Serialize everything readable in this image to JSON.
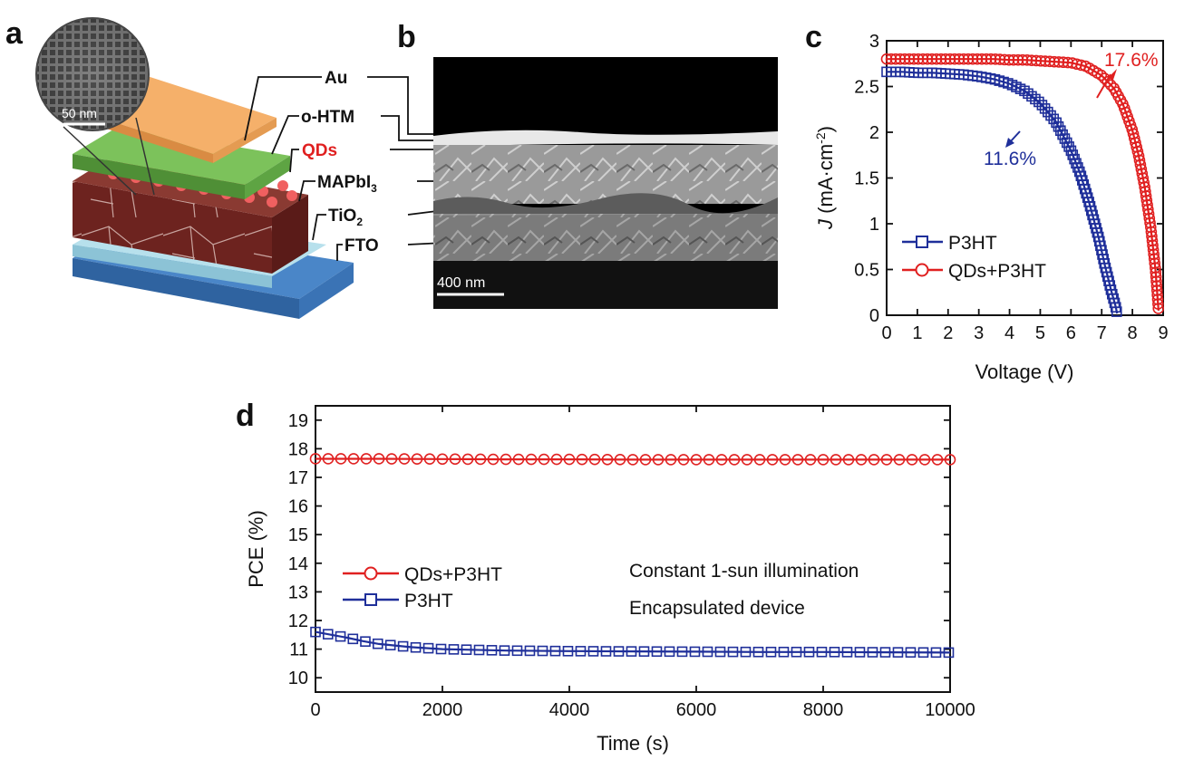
{
  "panels": {
    "a": "a",
    "b": "b",
    "c": "c",
    "d": "d"
  },
  "schematic": {
    "scale_bar": "50 nm",
    "layers": [
      {
        "label": "Au",
        "color": "#f0a45c"
      },
      {
        "label": "o-HTM",
        "color": "#6aa84f"
      },
      {
        "label": "QDs",
        "color": "#e02020",
        "highlight": true
      },
      {
        "label": "MAPbI",
        "sub": "3",
        "color": "#7a2b26"
      },
      {
        "label": "TiO",
        "sub": "2",
        "color": "#9fd2e0"
      },
      {
        "label": "FTO",
        "color": "#4a86c8"
      }
    ]
  },
  "sem": {
    "scale_bar": "400 nm"
  },
  "colors": {
    "red": "#e02020",
    "blue": "#1f2f9a"
  },
  "chart_data": [
    {
      "id": "c",
      "type": "line",
      "xlabel": "Voltage (V)",
      "ylabel_main": "J",
      "ylabel_unit": " (mA·cm",
      "ylabel_exp": "-2",
      "ylabel_close": ")",
      "xlim": [
        0,
        9
      ],
      "ylim": [
        0,
        3
      ],
      "xticks": [
        0,
        1,
        2,
        3,
        4,
        5,
        6,
        7,
        8,
        9
      ],
      "yticks": [
        0,
        0.5,
        1,
        1.5,
        2,
        2.5,
        3
      ],
      "ytick_labels": [
        "0",
        "0.5",
        "1",
        "1.5",
        "2",
        "2.5",
        "3"
      ],
      "legend": "bottom-left",
      "series": [
        {
          "name": "P3HT",
          "marker": "square",
          "color": "#1f2f9a",
          "x": [
            0.0,
            0.5,
            1.0,
            1.5,
            2.0,
            2.5,
            3.0,
            3.5,
            4.0,
            4.5,
            5.0,
            5.5,
            6.0,
            6.3,
            6.6,
            6.9,
            7.1,
            7.3,
            7.45,
            7.5
          ],
          "y": [
            2.66,
            2.66,
            2.65,
            2.65,
            2.64,
            2.63,
            2.61,
            2.58,
            2.53,
            2.45,
            2.32,
            2.12,
            1.8,
            1.55,
            1.22,
            0.85,
            0.55,
            0.28,
            0.1,
            0.02
          ]
        },
        {
          "name": "QDs+P3HT",
          "marker": "circle",
          "color": "#e02020",
          "x": [
            0.0,
            0.5,
            1.0,
            1.5,
            2.0,
            2.5,
            3.0,
            3.5,
            4.0,
            4.5,
            5.0,
            5.5,
            6.0,
            6.5,
            7.0,
            7.4,
            7.7,
            8.0,
            8.2,
            8.4,
            8.6,
            8.75,
            8.85
          ],
          "y": [
            2.8,
            2.8,
            2.8,
            2.8,
            2.8,
            2.8,
            2.8,
            2.8,
            2.79,
            2.79,
            2.78,
            2.77,
            2.76,
            2.72,
            2.62,
            2.48,
            2.3,
            2.02,
            1.75,
            1.4,
            0.95,
            0.5,
            0.05
          ]
        }
      ],
      "annotations": [
        {
          "text": "17.6%",
          "color": "#e02020"
        },
        {
          "text": "11.6%",
          "color": "#1f2f9a"
        }
      ]
    },
    {
      "id": "d",
      "type": "line",
      "xlabel": "Time (s)",
      "ylabel": "PCE (%)",
      "xlim": [
        0,
        10000
      ],
      "ylim": [
        9.5,
        19.5
      ],
      "xticks": [
        0,
        2000,
        4000,
        6000,
        8000,
        10000
      ],
      "yticks": [
        10,
        11,
        12,
        13,
        14,
        15,
        16,
        17,
        18,
        19
      ],
      "legend": "middle-left",
      "series": [
        {
          "name": "QDs+P3HT",
          "marker": "circle",
          "color": "#e02020",
          "x": [
            0,
            250,
            500,
            1000,
            2000,
            3000,
            4000,
            5000,
            6000,
            7000,
            8000,
            9000,
            10000
          ],
          "y": [
            17.65,
            17.65,
            17.65,
            17.65,
            17.64,
            17.63,
            17.63,
            17.62,
            17.62,
            17.62,
            17.62,
            17.62,
            17.62
          ]
        },
        {
          "name": "P3HT",
          "marker": "square",
          "color": "#1f2f9a",
          "x": [
            0,
            250,
            500,
            750,
            1000,
            1500,
            2000,
            3000,
            4000,
            5000,
            6000,
            7000,
            8000,
            9000,
            10000
          ],
          "y": [
            11.6,
            11.5,
            11.4,
            11.28,
            11.18,
            11.07,
            11.0,
            10.95,
            10.93,
            10.92,
            10.91,
            10.9,
            10.9,
            10.89,
            10.88
          ]
        }
      ],
      "annotations": [
        {
          "text": "Constant 1-sun illumination"
        },
        {
          "text": "Encapsulated device"
        }
      ]
    }
  ]
}
